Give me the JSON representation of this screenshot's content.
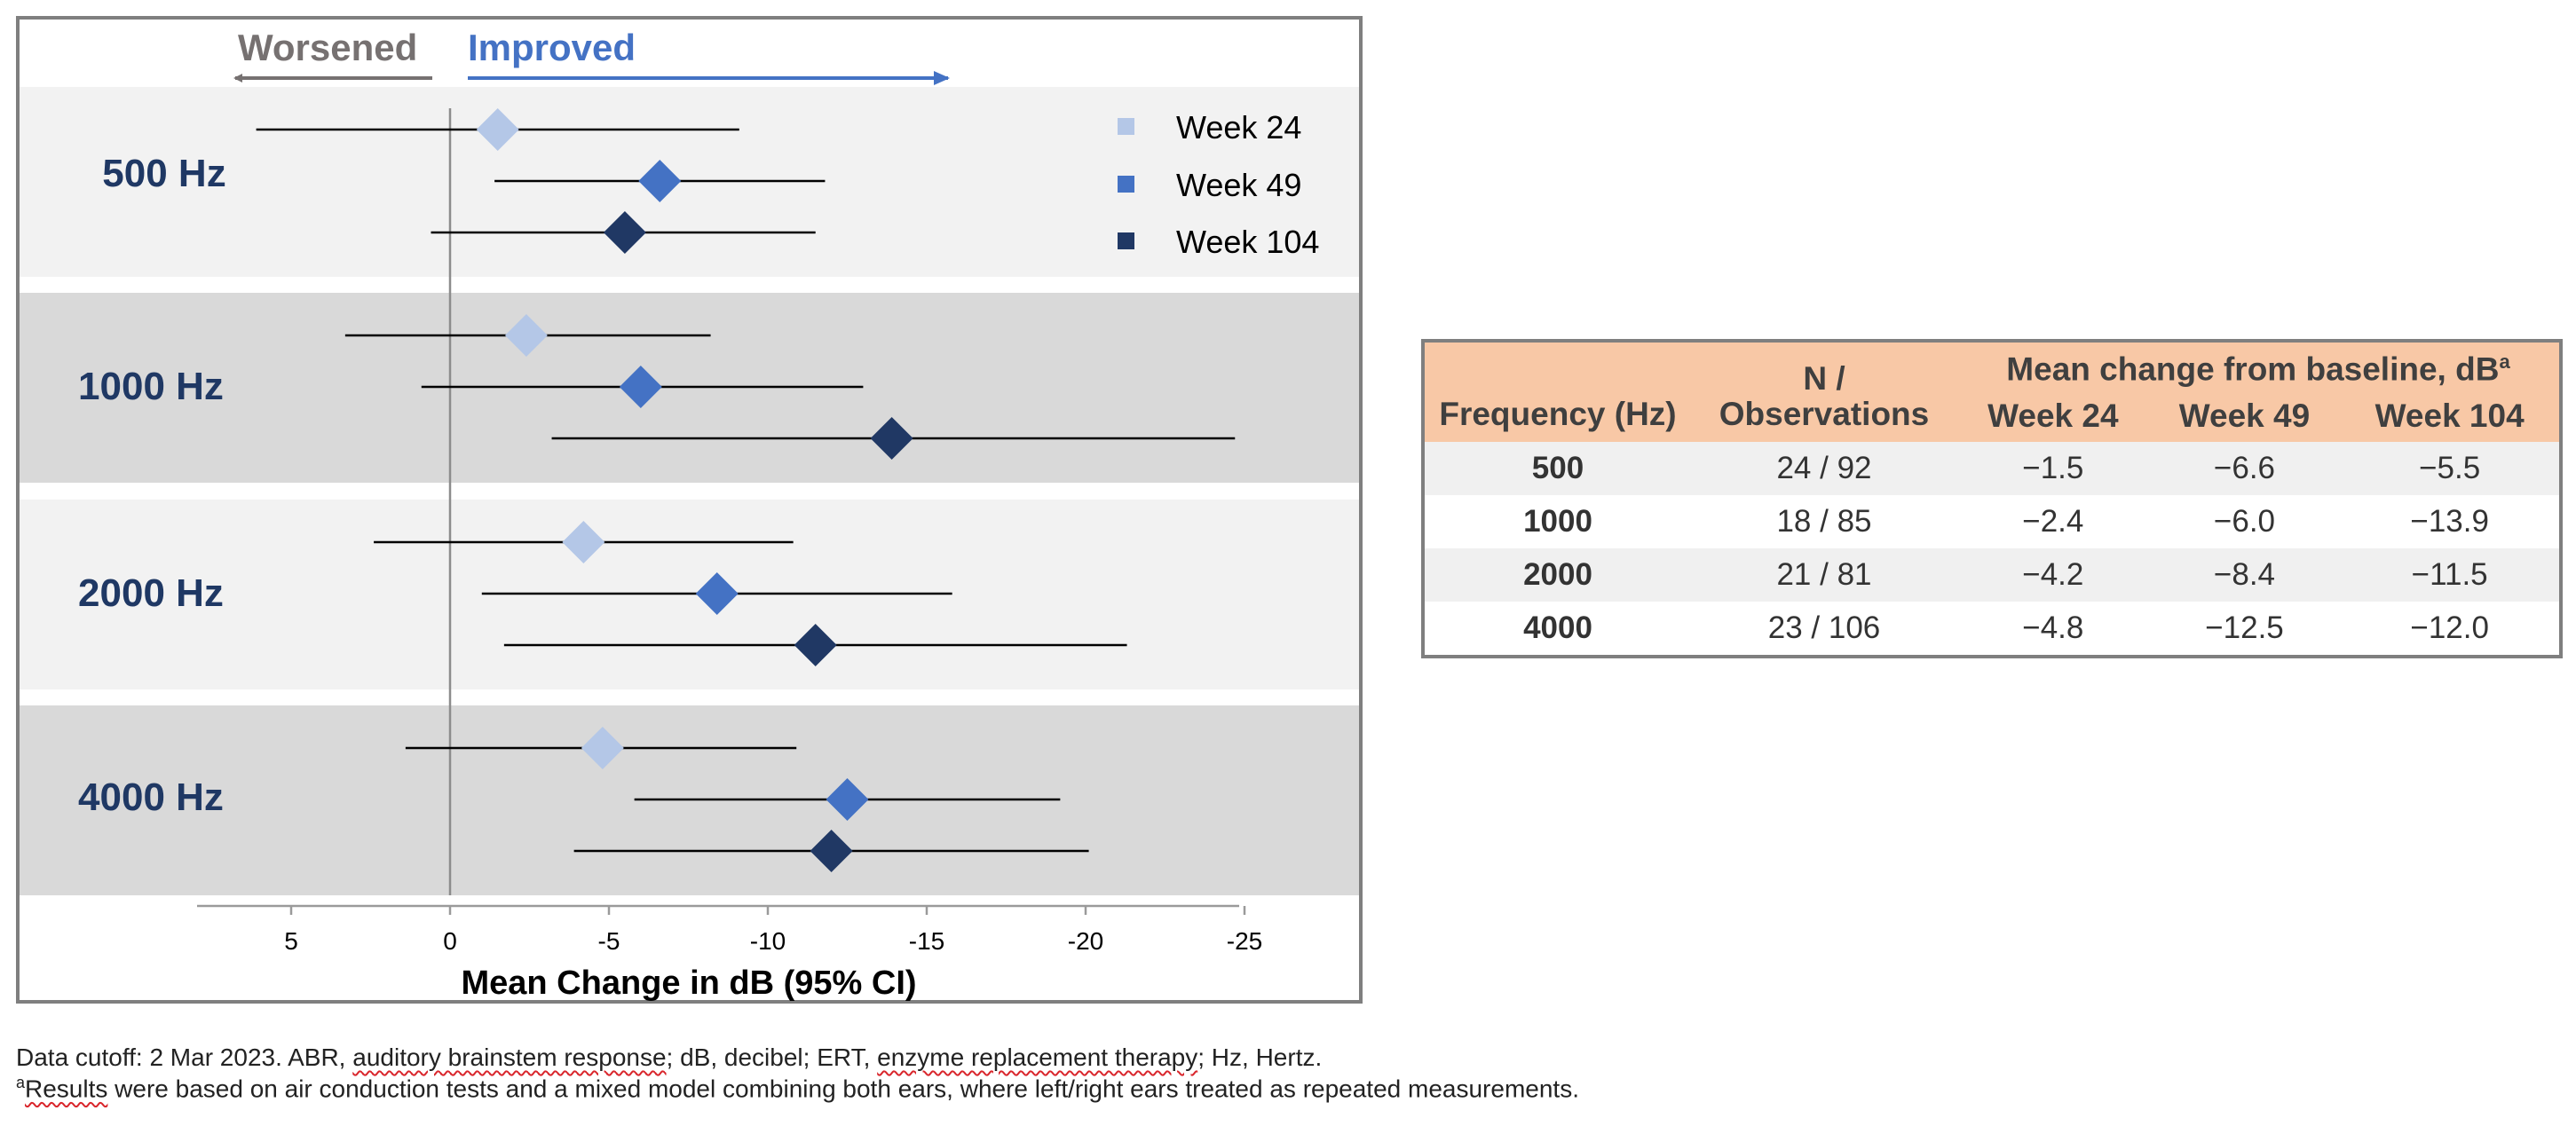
{
  "chart_data": {
    "type": "forest",
    "direction_labels": {
      "left": "Worsened",
      "right": "Improved"
    },
    "xlabel": "Mean Change in dB (95% CI)",
    "xlim": [
      8,
      -25
    ],
    "xticks": [
      5,
      0,
      -5,
      -10,
      -15,
      -20,
      -25
    ],
    "xtick_labels": [
      "5",
      "0",
      "-5",
      "-10",
      "-15",
      "-20",
      "-25"
    ],
    "legend": [
      {
        "name": "Week 24",
        "color": "#b4c7e7"
      },
      {
        "name": "Week 49",
        "color": "#4472c4"
      },
      {
        "name": "Week 104",
        "color": "#203864"
      }
    ],
    "groups": [
      {
        "label": "500 Hz",
        "points": [
          {
            "series": "Week 24",
            "mean": -1.5,
            "ci": [
              6.1,
              -9.1
            ]
          },
          {
            "series": "Week 49",
            "mean": -6.6,
            "ci": [
              -1.4,
              -11.8
            ]
          },
          {
            "series": "Week 104",
            "mean": -5.5,
            "ci": [
              0.6,
              -11.5
            ]
          }
        ]
      },
      {
        "label": "1000 Hz",
        "points": [
          {
            "series": "Week 24",
            "mean": -2.4,
            "ci": [
              3.3,
              -8.2
            ]
          },
          {
            "series": "Week 49",
            "mean": -6.0,
            "ci": [
              0.9,
              -13.0
            ]
          },
          {
            "series": "Week 104",
            "mean": -13.9,
            "ci": [
              -3.2,
              -24.7
            ]
          }
        ]
      },
      {
        "label": "2000 Hz",
        "points": [
          {
            "series": "Week 24",
            "mean": -4.2,
            "ci": [
              2.4,
              -10.8
            ]
          },
          {
            "series": "Week 49",
            "mean": -8.4,
            "ci": [
              -1.0,
              -15.8
            ]
          },
          {
            "series": "Week 104",
            "mean": -11.5,
            "ci": [
              -1.7,
              -21.3
            ]
          }
        ]
      },
      {
        "label": "4000 Hz",
        "points": [
          {
            "series": "Week 24",
            "mean": -4.8,
            "ci": [
              1.4,
              -10.9
            ]
          },
          {
            "series": "Week 49",
            "mean": -12.5,
            "ci": [
              -5.8,
              -19.2
            ]
          },
          {
            "series": "Week 104",
            "mean": -12.0,
            "ci": [
              -3.9,
              -20.1
            ]
          }
        ]
      }
    ]
  },
  "table": {
    "headers": {
      "frequency": "Frequency (Hz)",
      "n_line1": "N /",
      "n_line2": "Observations",
      "mean_change": "Mean change from baseline, dB",
      "mean_change_sup": "a",
      "week24": "Week 24",
      "week49": "Week 49",
      "week104": "Week 104"
    },
    "rows": [
      {
        "freq": "500",
        "n": "24 / 92",
        "w24": "−1.5",
        "w49": "−6.6",
        "w104": "−5.5"
      },
      {
        "freq": "1000",
        "n": "18 / 85",
        "w24": "−2.4",
        "w49": "−6.0",
        "w104": "−13.9"
      },
      {
        "freq": "2000",
        "n": "21 / 81",
        "w24": "−4.2",
        "w49": "−8.4",
        "w104": "−11.5"
      },
      {
        "freq": "4000",
        "n": "23 / 106",
        "w24": "−4.8",
        "w49": "−12.5",
        "w104": "−12.0"
      }
    ]
  },
  "footnotes": {
    "line1_a": "Data cutoff: 2 Mar 2023. ABR, ",
    "line1_abr": "auditory brainstem response",
    "line1_b": "; dB, decibel; ERT, ",
    "line1_ert": "enzyme replacement therapy",
    "line1_c": "; Hz, Hertz.",
    "line2_sup": "a",
    "line2_results": "Results",
    "line2_rest": " were based on air conduction tests and a mixed model combining both ears, where left/right ears treated as repeated measurements."
  },
  "colors": {
    "week24": "#b4c7e7",
    "week49": "#4472c4",
    "week104": "#203864",
    "band_light": "#f2f2f2",
    "band_dark": "#d9d9d9",
    "label_navy": "#1f3864",
    "worsened_gray": "#767171",
    "improved_blue": "#4472c4",
    "table_header": "#f8c8a6"
  }
}
